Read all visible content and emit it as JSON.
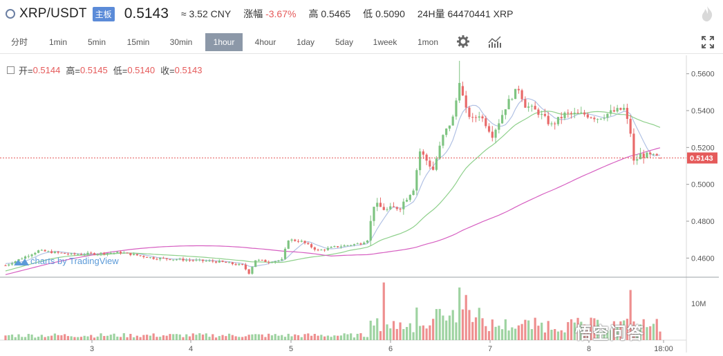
{
  "header": {
    "pair": "XRP/USDT",
    "badge": "主板",
    "price": "0.5143",
    "cny": "≈ 3.52 CNY",
    "change_label": "涨幅",
    "change_value": "-3.67%",
    "high_label": "高",
    "high_value": "0.5465",
    "low_label": "低",
    "low_value": "0.5090",
    "vol_label": "24H量",
    "vol_value": "64470441 XRP"
  },
  "toolbar": {
    "intervals": [
      "分时",
      "1min",
      "5min",
      "15min",
      "30min",
      "1hour",
      "4hour",
      "1day",
      "5day",
      "1week",
      "1mon"
    ],
    "active": "1hour"
  },
  "legend": {
    "open_label": "开=",
    "open": "0.5144",
    "high_label": "高=",
    "high": "0.5145",
    "low_label": "低=",
    "low": "0.5140",
    "close_label": "收=",
    "close": "0.5143"
  },
  "branding": {
    "tradingview": "charts by TradingView",
    "watermark": "悟空问答"
  },
  "colors": {
    "up": "#7ec481",
    "down": "#e86a6a",
    "ma1": "#b1c1e4",
    "ma2": "#8ed08b",
    "ma3": "#d65ec1",
    "price_line": "#e55a5a"
  },
  "icons": {
    "settings": "gear-icon",
    "indicators": "chart-indicator-icon",
    "fullscreen": "fullscreen-icon",
    "brand": "flame-icon"
  },
  "chart_data": {
    "type": "candlestick",
    "x_ticks": [
      "3",
      "4",
      "5",
      "6",
      "7",
      "8",
      "18:00"
    ],
    "y_ticks": [
      "0.4600",
      "0.4800",
      "0.5000",
      "0.5200",
      "0.5400",
      "0.5600"
    ],
    "ylim": [
      0.45,
      0.567
    ],
    "volume_tick": "10M",
    "volume_max": 12000000,
    "last_price": "0.5143",
    "price_anchors": [
      [
        0,
        0.456
      ],
      [
        10,
        0.464
      ],
      [
        20,
        0.462
      ],
      [
        35,
        0.463
      ],
      [
        45,
        0.46
      ],
      [
        55,
        0.459
      ],
      [
        65,
        0.458
      ],
      [
        72,
        0.456
      ],
      [
        74,
        0.452
      ],
      [
        76,
        0.459
      ],
      [
        80,
        0.458
      ],
      [
        84,
        0.459
      ],
      [
        86,
        0.47
      ],
      [
        90,
        0.469
      ],
      [
        95,
        0.464
      ],
      [
        100,
        0.466
      ],
      [
        108,
        0.468
      ],
      [
        110,
        0.47
      ],
      [
        112,
        0.489
      ],
      [
        116,
        0.486
      ],
      [
        120,
        0.488
      ],
      [
        124,
        0.498
      ],
      [
        126,
        0.518
      ],
      [
        130,
        0.508
      ],
      [
        133,
        0.526
      ],
      [
        136,
        0.536
      ],
      [
        138,
        0.555
      ],
      [
        140,
        0.54
      ],
      [
        142,
        0.535
      ],
      [
        144,
        0.538
      ],
      [
        146,
        0.533
      ],
      [
        148,
        0.527
      ],
      [
        150,
        0.534
      ],
      [
        152,
        0.542
      ],
      [
        154,
        0.548
      ],
      [
        156,
        0.552
      ],
      [
        158,
        0.543
      ],
      [
        162,
        0.539
      ],
      [
        166,
        0.532
      ],
      [
        170,
        0.538
      ],
      [
        176,
        0.538
      ],
      [
        180,
        0.536
      ],
      [
        184,
        0.539
      ],
      [
        188,
        0.541
      ],
      [
        190,
        0.528
      ],
      [
        191,
        0.512
      ],
      [
        193,
        0.516
      ],
      [
        197,
        0.515
      ],
      [
        199,
        0.5143
      ]
    ],
    "candle_count": 200,
    "volume_spikes": [
      [
        115,
        11500000
      ],
      [
        125,
        6500000
      ],
      [
        136,
        6000000
      ],
      [
        138,
        10500000
      ],
      [
        140,
        9000000
      ],
      [
        190,
        10000000
      ]
    ],
    "ma_periods": [
      7,
      30,
      99
    ],
    "ma_start": {
      "7": 0.457,
      "30": 0.453,
      "99": 0.451
    },
    "ma_end": {
      "7": 0.518,
      "30": 0.532,
      "99": 0.532
    }
  }
}
